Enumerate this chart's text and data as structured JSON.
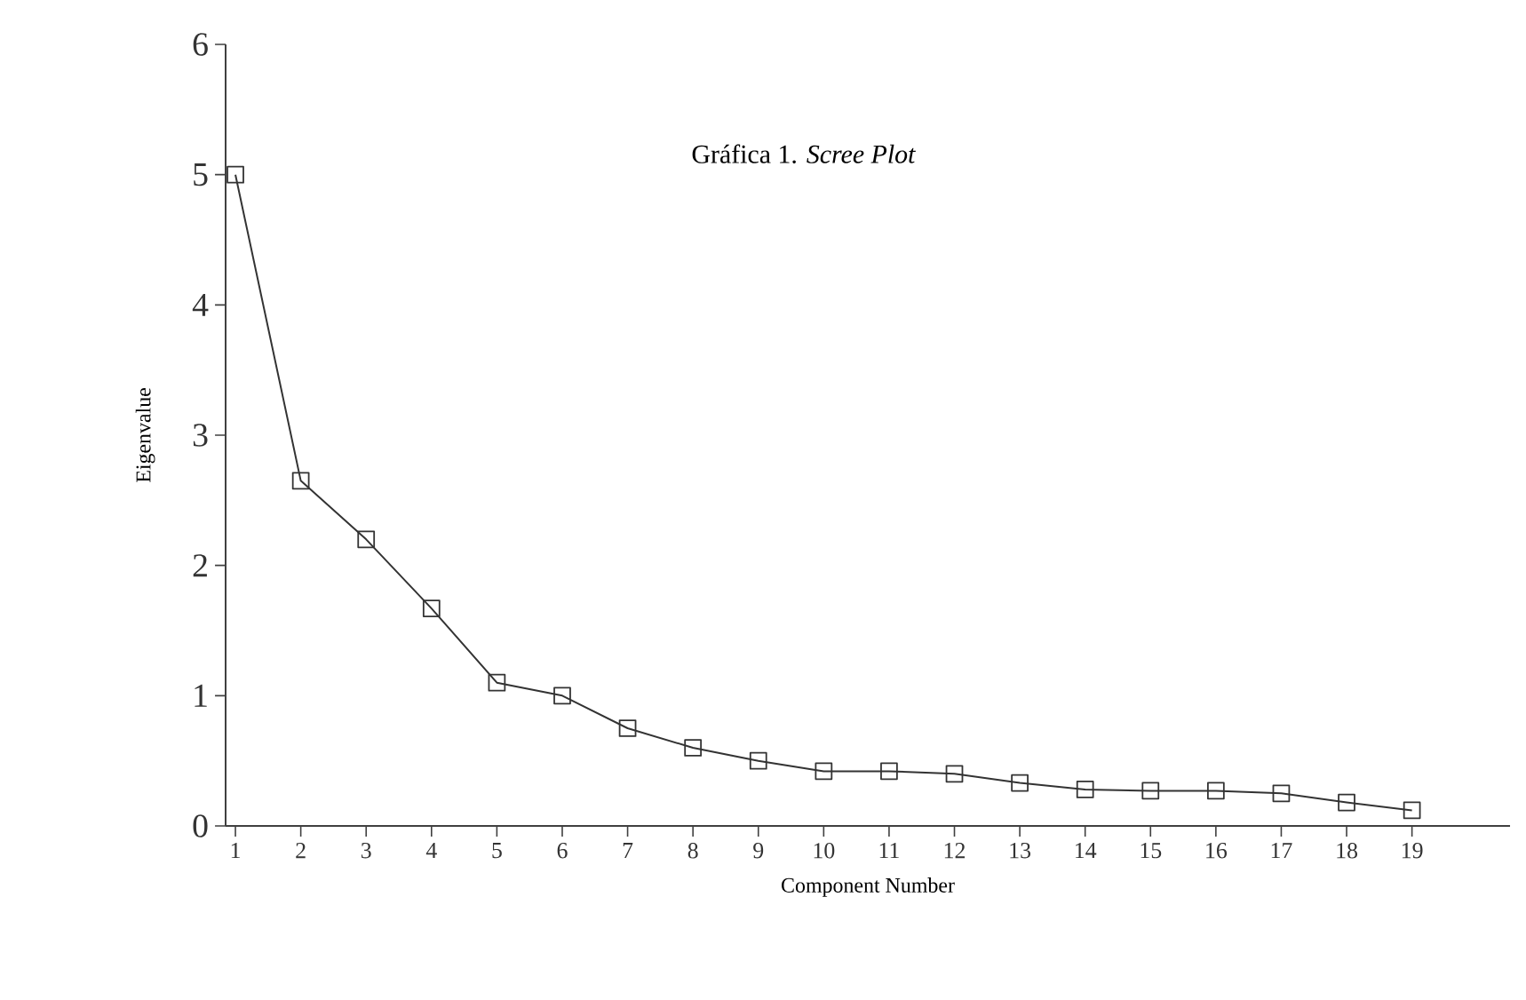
{
  "chart_data": {
    "type": "line",
    "title": "Gráfica 1. *Scree Plot*",
    "xlabel": "Component Number",
    "ylabel": "Eigenvalue",
    "x": [
      1,
      2,
      3,
      4,
      5,
      6,
      7,
      8,
      9,
      10,
      11,
      12,
      13,
      14,
      15,
      16,
      17,
      18,
      19
    ],
    "series": [
      {
        "color": "#333333",
        "values": [
          5.0,
          2.65,
          2.2,
          1.67,
          1.1,
          1.0,
          0.75,
          0.6,
          0.5,
          0.42,
          0.42,
          0.4,
          0.33,
          0.28,
          0.27,
          0.27,
          0.25,
          0.18,
          0.12
        ]
      }
    ],
    "xlim": [
      0.85,
      20.5
    ],
    "ylim": [
      0,
      6
    ],
    "xticks": [
      1,
      2,
      3,
      4,
      5,
      6,
      7,
      8,
      9,
      10,
      11,
      12,
      13,
      14,
      15,
      16,
      17,
      18,
      19
    ],
    "yticks": [
      0,
      1,
      2,
      3,
      4,
      5,
      6
    ],
    "marker": "square",
    "line_style": "solid"
  }
}
